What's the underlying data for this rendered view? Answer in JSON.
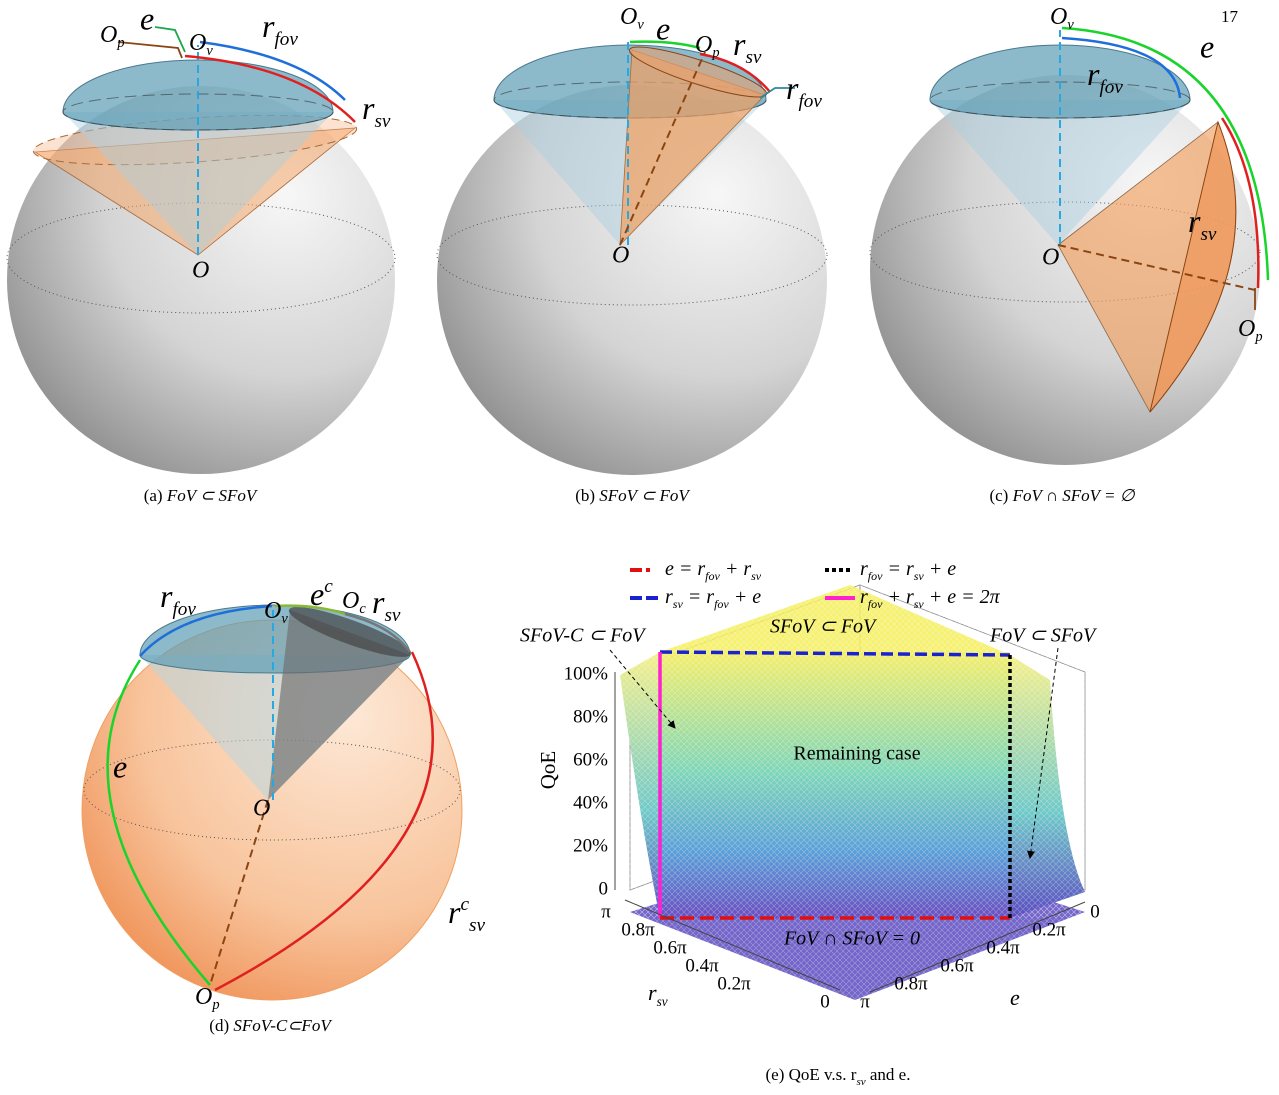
{
  "page_number": "17",
  "figures": [
    {
      "caption": {
        "label": "(a)",
        "text": "FoV ⊂ SFoV"
      },
      "labels": [
        "e",
        [
          "O",
          {
            "sub": "p"
          }
        ],
        [
          "O",
          {
            "sub": "v"
          }
        ],
        [
          "r",
          {
            "sub": "fov"
          }
        ],
        [
          "r",
          {
            "sub": "sv"
          }
        ],
        "O"
      ]
    },
    {
      "caption": {
        "label": "(b)",
        "text": "SFoV ⊂ FoV"
      },
      "labels": [
        [
          "O",
          {
            "sub": "v"
          }
        ],
        "e",
        [
          "O",
          {
            "sub": "p"
          }
        ],
        [
          "r",
          {
            "sub": "sv"
          }
        ],
        [
          "r",
          {
            "sub": "fov"
          }
        ],
        "O"
      ]
    },
    {
      "caption": {
        "label": "(c)",
        "text": "FoV ∩ SFoV = ∅"
      },
      "labels": [
        [
          "O",
          {
            "sub": "v"
          }
        ],
        "e",
        [
          "r",
          {
            "sub": "fov"
          }
        ],
        [
          "r",
          {
            "sub": "sv"
          }
        ],
        "O",
        [
          "O",
          {
            "sub": "p"
          }
        ]
      ]
    },
    {
      "caption": {
        "label": "(d)",
        "text": "SFoV-C⊂FoV"
      },
      "labels": [
        [
          "r",
          {
            "sub": "fov"
          }
        ],
        [
          "O",
          {
            "sub": "v"
          }
        ],
        [
          "e",
          {
            "sup": "c"
          }
        ],
        [
          "O",
          {
            "sub": "c"
          }
        ],
        [
          "r",
          {
            "sub": "sv"
          }
        ],
        "e",
        "O",
        [
          "r",
          {
            "sup": "c"
          },
          {
            "sub": "sv"
          }
        ],
        [
          "O",
          {
            "sub": "p"
          }
        ]
      ]
    },
    {
      "caption": {
        "label": "(e)",
        "text": [
          "QoE v.s. r",
          {
            "sub": "sv"
          },
          " and e."
        ]
      },
      "plot": {
        "legend": [
          [
            "e = r",
            {
              "sub": "fov"
            },
            " + r",
            {
              "sub": "sv"
            }
          ],
          [
            "r",
            {
              "sub": "fov"
            },
            " = r",
            {
              "sub": "sv"
            },
            " + e"
          ],
          [
            "r",
            {
              "sub": "sv"
            },
            " = r",
            {
              "sub": "fov"
            },
            " + e"
          ],
          [
            "r",
            {
              "sub": "fov"
            },
            " + r",
            {
              "sub": "sv"
            },
            " + e = 2π"
          ]
        ],
        "annotations": [
          "SFoV-C ⊂ FoV",
          "SFoV ⊂ FoV",
          "FoV ⊂ SFoV",
          "Remaining case",
          "FoV ∩ SFoV = 0"
        ],
        "z_label": "QoE",
        "z_ticks": [
          "0",
          "20%",
          "40%",
          "60%",
          "80%",
          "100%"
        ],
        "x_label": [
          "r",
          {
            "sub": "sv"
          }
        ],
        "x_ticks": [
          "π",
          "0.8π",
          "0.6π",
          "0.4π",
          "0.2π",
          "0"
        ],
        "y_label": "e",
        "y_ticks": [
          "0",
          "0.2π",
          "0.4π",
          "0.6π",
          "0.8π",
          "π"
        ]
      }
    }
  ]
}
